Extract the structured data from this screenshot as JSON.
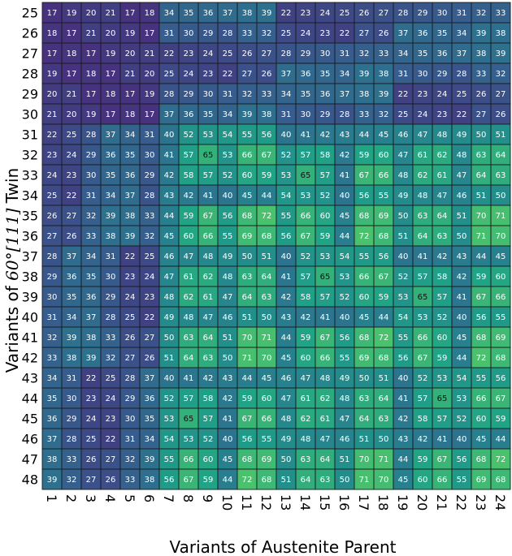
{
  "chart_data": {
    "type": "heatmap",
    "xlabel": "Variants of Austenite Parent",
    "ylabel_prefix": "Variants of ",
    "ylabel_math": "60°[111]",
    "ylabel_suffix": " Twin",
    "x_categories": [
      "1",
      "2",
      "3",
      "4",
      "5",
      "6",
      "7",
      "8",
      "9",
      "10",
      "11",
      "12",
      "13",
      "14",
      "15",
      "16",
      "17",
      "18",
      "19",
      "20",
      "21",
      "22",
      "23",
      "24"
    ],
    "y_categories": [
      "25",
      "26",
      "27",
      "28",
      "29",
      "30",
      "31",
      "32",
      "33",
      "34",
      "35",
      "36",
      "37",
      "38",
      "39",
      "40",
      "41",
      "42",
      "43",
      "44",
      "45",
      "46",
      "47",
      "48"
    ],
    "value_range": [
      17,
      72
    ],
    "colormap": [
      "#46327e",
      "#365c8d",
      "#277f8e",
      "#1fa187",
      "#4ac16d"
    ],
    "highlight_value": 65,
    "values": [
      [
        17,
        19,
        20,
        21,
        17,
        18,
        34,
        35,
        36,
        37,
        38,
        39,
        22,
        23,
        24,
        25,
        26,
        27,
        28,
        29,
        30,
        31,
        32,
        33
      ],
      [
        18,
        17,
        21,
        20,
        19,
        17,
        31,
        30,
        29,
        28,
        33,
        32,
        25,
        24,
        23,
        22,
        27,
        26,
        37,
        36,
        35,
        34,
        39,
        38
      ],
      [
        17,
        18,
        17,
        19,
        20,
        21,
        22,
        23,
        24,
        25,
        26,
        27,
        28,
        29,
        30,
        31,
        32,
        33,
        34,
        35,
        36,
        37,
        38,
        39
      ],
      [
        19,
        17,
        18,
        17,
        21,
        20,
        25,
        24,
        23,
        22,
        27,
        26,
        37,
        36,
        35,
        34,
        39,
        38,
        31,
        30,
        29,
        28,
        33,
        32
      ],
      [
        20,
        21,
        17,
        18,
        17,
        19,
        28,
        29,
        30,
        31,
        32,
        33,
        34,
        35,
        36,
        37,
        38,
        39,
        22,
        23,
        24,
        25,
        26,
        27
      ],
      [
        21,
        20,
        19,
        17,
        18,
        17,
        37,
        36,
        35,
        34,
        39,
        38,
        31,
        30,
        29,
        28,
        33,
        32,
        25,
        24,
        23,
        22,
        27,
        26
      ],
      [
        22,
        25,
        28,
        37,
        34,
        31,
        40,
        52,
        53,
        54,
        55,
        56,
        40,
        41,
        42,
        43,
        44,
        45,
        46,
        47,
        48,
        49,
        50,
        51
      ],
      [
        23,
        24,
        29,
        36,
        35,
        30,
        41,
        57,
        65,
        53,
        66,
        67,
        52,
        57,
        58,
        42,
        59,
        60,
        47,
        61,
        62,
        48,
        63,
        64
      ],
      [
        24,
        23,
        30,
        35,
        36,
        29,
        42,
        58,
        57,
        52,
        60,
        59,
        53,
        65,
        57,
        41,
        67,
        66,
        48,
        62,
        61,
        47,
        64,
        63
      ],
      [
        25,
        22,
        31,
        34,
        37,
        28,
        43,
        42,
        41,
        40,
        45,
        44,
        54,
        53,
        52,
        40,
        56,
        55,
        49,
        48,
        47,
        46,
        51,
        50
      ],
      [
        26,
        27,
        32,
        39,
        38,
        33,
        44,
        59,
        67,
        56,
        68,
        72,
        55,
        66,
        60,
        45,
        68,
        69,
        50,
        63,
        64,
        51,
        70,
        71
      ],
      [
        27,
        26,
        33,
        38,
        39,
        32,
        45,
        60,
        66,
        55,
        69,
        68,
        56,
        67,
        59,
        44,
        72,
        68,
        51,
        64,
        63,
        50,
        71,
        70
      ],
      [
        28,
        37,
        34,
        31,
        22,
        25,
        46,
        47,
        48,
        49,
        50,
        51,
        40,
        52,
        53,
        54,
        55,
        56,
        40,
        41,
        42,
        43,
        44,
        45
      ],
      [
        29,
        36,
        35,
        30,
        23,
        24,
        47,
        61,
        62,
        48,
        63,
        64,
        41,
        57,
        65,
        53,
        66,
        67,
        52,
        57,
        58,
        42,
        59,
        60
      ],
      [
        30,
        35,
        36,
        29,
        24,
        23,
        48,
        62,
        61,
        47,
        64,
        63,
        42,
        58,
        57,
        52,
        60,
        59,
        53,
        65,
        57,
        41,
        67,
        66
      ],
      [
        31,
        34,
        37,
        28,
        25,
        22,
        49,
        48,
        47,
        46,
        51,
        50,
        43,
        42,
        41,
        40,
        45,
        44,
        54,
        53,
        52,
        40,
        56,
        55
      ],
      [
        32,
        39,
        38,
        33,
        26,
        27,
        50,
        63,
        64,
        51,
        70,
        71,
        44,
        59,
        67,
        56,
        68,
        72,
        55,
        66,
        60,
        45,
        68,
        69
      ],
      [
        33,
        38,
        39,
        32,
        27,
        26,
        51,
        64,
        63,
        50,
        71,
        70,
        45,
        60,
        66,
        55,
        69,
        68,
        56,
        67,
        59,
        44,
        72,
        68
      ],
      [
        34,
        31,
        22,
        25,
        28,
        37,
        40,
        41,
        42,
        43,
        44,
        45,
        46,
        47,
        48,
        49,
        50,
        51,
        40,
        52,
        53,
        54,
        55,
        56
      ],
      [
        35,
        30,
        23,
        24,
        29,
        36,
        52,
        57,
        58,
        42,
        59,
        60,
        47,
        61,
        62,
        48,
        63,
        64,
        41,
        57,
        65,
        53,
        66,
        67
      ],
      [
        36,
        29,
        24,
        23,
        30,
        35,
        53,
        65,
        57,
        41,
        67,
        66,
        48,
        62,
        61,
        47,
        64,
        63,
        42,
        58,
        57,
        52,
        60,
        59
      ],
      [
        37,
        28,
        25,
        22,
        31,
        34,
        54,
        53,
        52,
        40,
        56,
        55,
        49,
        48,
        47,
        46,
        51,
        50,
        43,
        42,
        41,
        40,
        45,
        44
      ],
      [
        38,
        33,
        26,
        27,
        32,
        39,
        55,
        66,
        60,
        45,
        68,
        69,
        50,
        63,
        64,
        51,
        70,
        71,
        44,
        59,
        67,
        56,
        68,
        72
      ],
      [
        39,
        32,
        27,
        26,
        33,
        38,
        56,
        67,
        59,
        44,
        72,
        68,
        51,
        64,
        63,
        50,
        71,
        70,
        45,
        60,
        66,
        55,
        69,
        68
      ]
    ]
  }
}
